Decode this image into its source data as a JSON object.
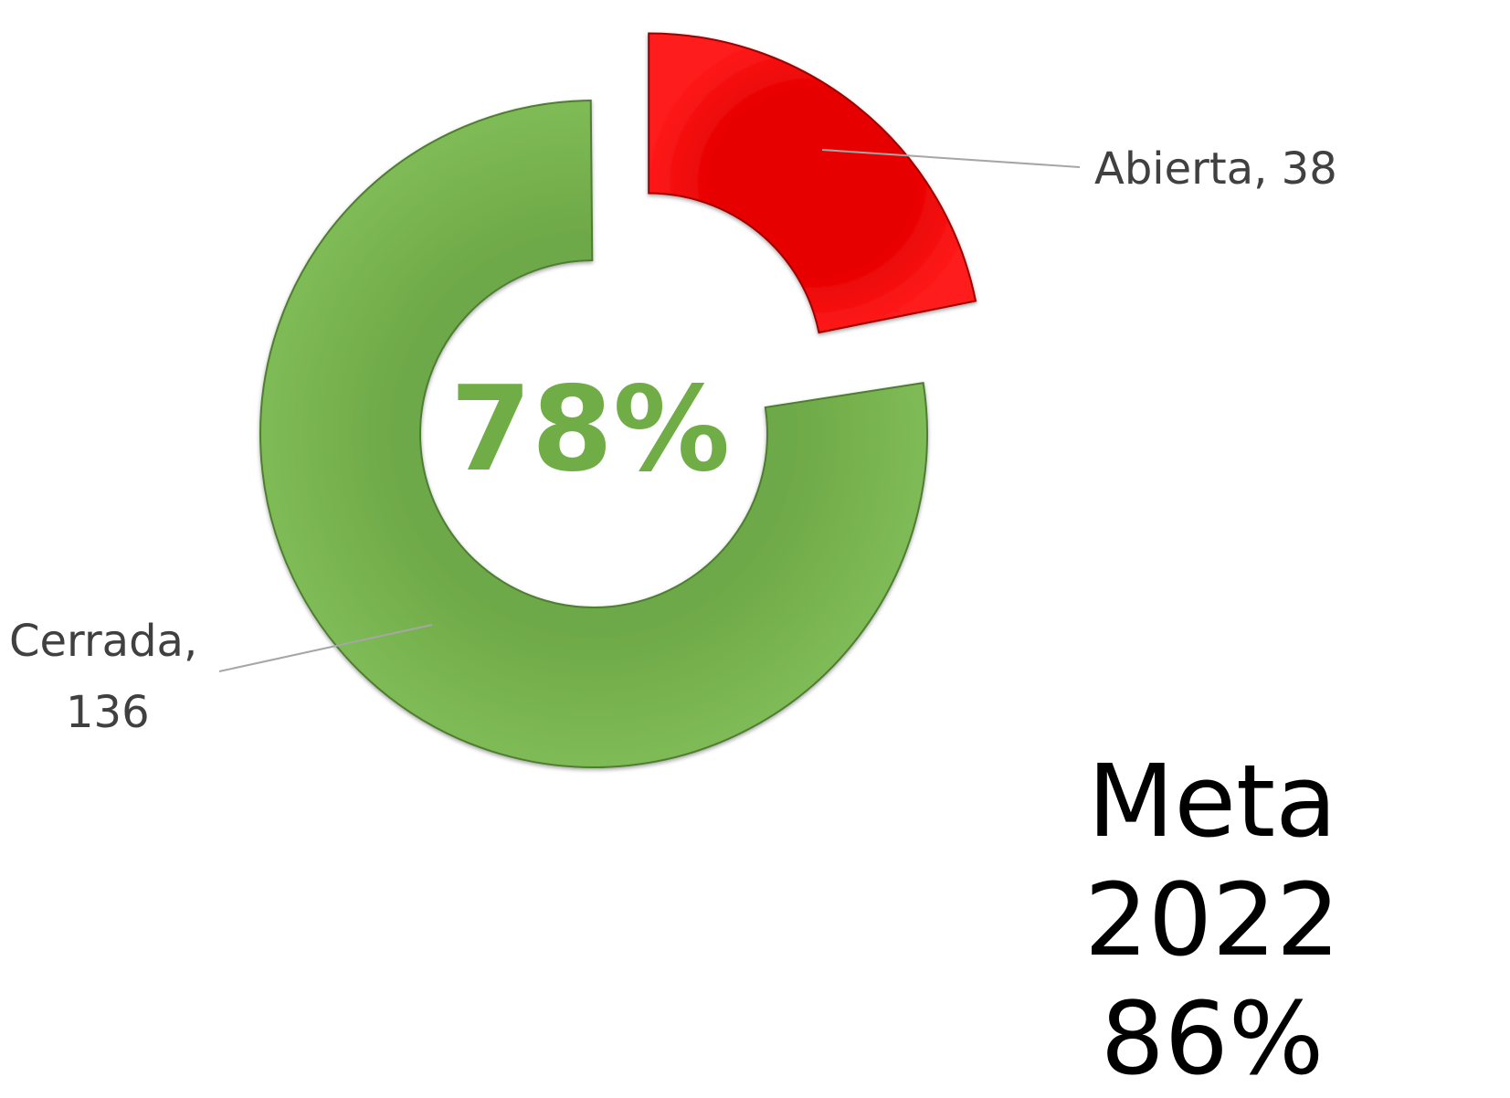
{
  "chart_data": {
    "type": "pie",
    "style": "doughnut-exploded",
    "slices": [
      {
        "name": "Cerrada",
        "value": 136,
        "label_line1": "Cerrada,",
        "label_line2": "136",
        "color": "#70ad47"
      },
      {
        "name": "Abierta",
        "value": 38,
        "label": "Abierta, 38",
        "color": "#ff0000"
      }
    ],
    "center_text": "78%"
  },
  "goal": {
    "title": "Meta 2022",
    "value": "86%"
  }
}
